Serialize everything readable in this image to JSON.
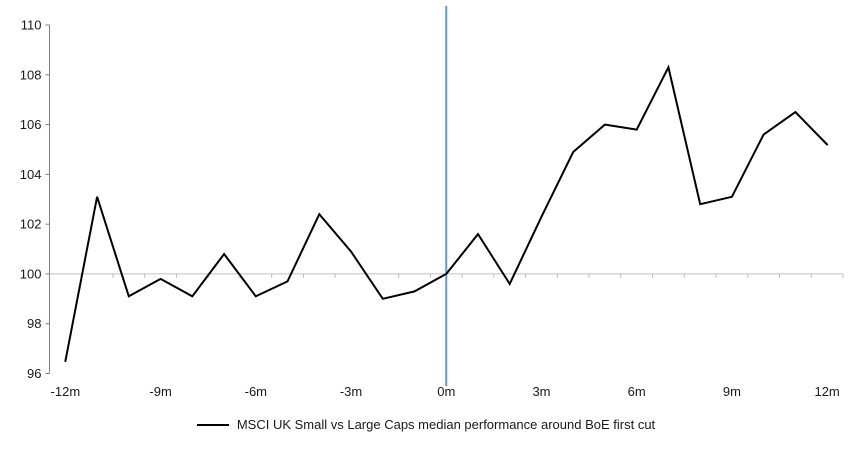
{
  "chart_data": {
    "type": "line",
    "title": "",
    "xlabel": "",
    "ylabel": "",
    "x": [
      -12,
      -11,
      -10,
      -9,
      -8,
      -7,
      -6,
      -5,
      -4,
      -3,
      -2,
      -1,
      0,
      1,
      2,
      3,
      4,
      5,
      6,
      7,
      8,
      9,
      10,
      11,
      12
    ],
    "series": [
      {
        "name": "MSCI UK Small vs Large Caps median performance around BoE first cut",
        "values": [
          96.5,
          103.1,
          99.1,
          99.8,
          99.1,
          100.8,
          99.1,
          99.7,
          102.4,
          100.9,
          99.0,
          99.3,
          100.0,
          101.6,
          99.6,
          102.3,
          104.9,
          106.0,
          105.8,
          108.3,
          102.8,
          103.1,
          105.6,
          106.5,
          105.2
        ]
      }
    ],
    "ylim": [
      96,
      110
    ],
    "y_ticks": [
      96,
      98,
      100,
      102,
      104,
      106,
      108,
      110
    ],
    "x_tick_labels": [
      "-12m",
      "-9m",
      "-6m",
      "-3m",
      "0m",
      "3m",
      "6m",
      "9m",
      "12m"
    ],
    "x_tick_positions": [
      -12,
      -9,
      -6,
      -3,
      0,
      3,
      6,
      9,
      12
    ],
    "baseline_value": 100,
    "event_line_x": 0,
    "grid": "off",
    "legend_position": "bottom",
    "colors": {
      "series_line": "#000000",
      "event_line": "#5B9BD5",
      "category_axis": "#BFBFBF",
      "value_axis": "#808080",
      "text": "#1a1a1a"
    },
    "legend": {
      "label": "MSCI UK Small vs Large Caps median performance around BoE first cut"
    }
  }
}
